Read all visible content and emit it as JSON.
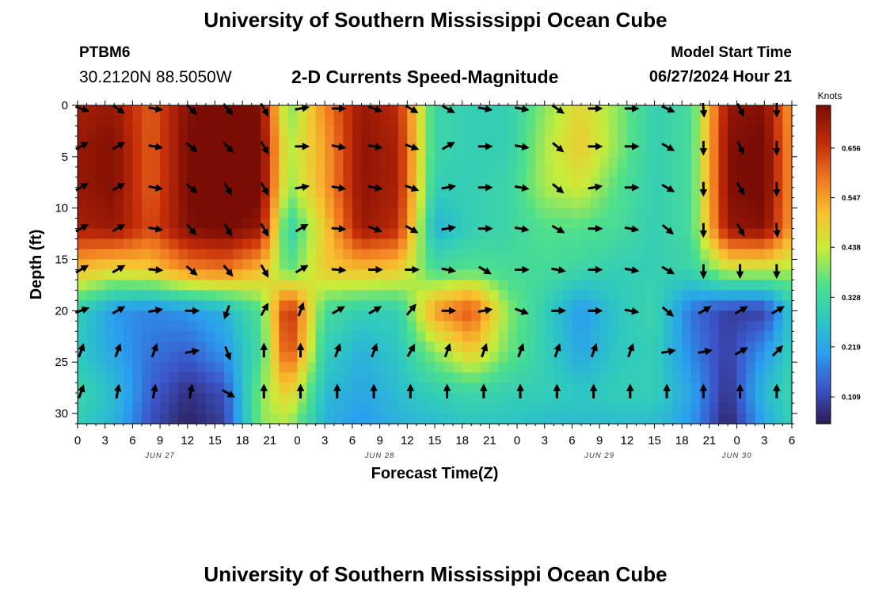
{
  "header": {
    "title": "University of Southern Mississippi Ocean Cube",
    "station": "PTBM6",
    "coordinates": "30.2120N  88.5050W",
    "subtitle": "2-D Currents Speed-Magnitude",
    "model_start_label": "Model Start Time",
    "model_start_value": "06/27/2024 Hour 21"
  },
  "footer": {
    "title": "University of Southern Mississippi Ocean Cube"
  },
  "colors": {
    "colormap": [
      "#2b1a52",
      "#3c54c8",
      "#2a9ef0",
      "#2ec9c0",
      "#4fe08a",
      "#c8ec3a",
      "#f8c030",
      "#f07820",
      "#c42c08",
      "#7a0c04"
    ]
  },
  "chart_data": {
    "type": "heatmap",
    "xlabel": "Forecast Time(Z)",
    "ylabel": "Depth (ft)",
    "colorbar_label": "Knots",
    "x_hours_range": [
      0,
      78
    ],
    "x_tick_labels": [
      "0",
      "3",
      "6",
      "9",
      "12",
      "15",
      "18",
      "21",
      "0",
      "3",
      "6",
      "9",
      "12",
      "15",
      "18",
      "21",
      "0",
      "3",
      "6",
      "9",
      "12",
      "15",
      "18",
      "21",
      "0",
      "3",
      "6"
    ],
    "date_labels": [
      {
        "label": "JUN 27",
        "hour": 9
      },
      {
        "label": "JUN 28",
        "hour": 33
      },
      {
        "label": "JUN 29",
        "hour": 57
      },
      {
        "label": "JUN 30",
        "hour": 72
      }
    ],
    "ylim": [
      0,
      31
    ],
    "y_ticks": [
      0,
      5,
      10,
      15,
      20,
      25,
      30
    ],
    "y_reversed": true,
    "colorbar_ticks": [
      0.109,
      0.219,
      0.328,
      0.438,
      0.547,
      0.656
    ],
    "color_range": [
      0.05,
      0.75
    ],
    "depths": [
      0,
      4,
      8,
      12,
      16,
      20,
      24,
      28,
      31
    ],
    "hours": [
      0,
      4,
      8,
      12,
      16,
      20,
      23,
      27,
      31,
      35,
      39,
      43,
      47,
      51,
      55,
      59,
      63,
      67,
      71,
      75,
      78
    ],
    "speed": [
      [
        0.7,
        0.72,
        0.62,
        0.74,
        0.76,
        0.74,
        0.38,
        0.58,
        0.72,
        0.68,
        0.32,
        0.3,
        0.3,
        0.4,
        0.48,
        0.4,
        0.3,
        0.34,
        0.72,
        0.74,
        0.55
      ],
      [
        0.72,
        0.74,
        0.62,
        0.75,
        0.77,
        0.76,
        0.42,
        0.55,
        0.73,
        0.7,
        0.32,
        0.3,
        0.3,
        0.42,
        0.5,
        0.4,
        0.3,
        0.34,
        0.74,
        0.76,
        0.56
      ],
      [
        0.72,
        0.74,
        0.62,
        0.75,
        0.78,
        0.76,
        0.4,
        0.55,
        0.73,
        0.7,
        0.3,
        0.3,
        0.32,
        0.42,
        0.45,
        0.36,
        0.3,
        0.34,
        0.74,
        0.76,
        0.56
      ],
      [
        0.7,
        0.72,
        0.64,
        0.74,
        0.76,
        0.72,
        0.3,
        0.5,
        0.72,
        0.68,
        0.24,
        0.3,
        0.32,
        0.36,
        0.36,
        0.34,
        0.3,
        0.34,
        0.72,
        0.74,
        0.55
      ],
      [
        0.52,
        0.48,
        0.5,
        0.58,
        0.6,
        0.52,
        0.36,
        0.5,
        0.52,
        0.5,
        0.34,
        0.36,
        0.34,
        0.34,
        0.32,
        0.3,
        0.3,
        0.32,
        0.44,
        0.44,
        0.42
      ],
      [
        0.3,
        0.2,
        0.18,
        0.2,
        0.24,
        0.36,
        0.7,
        0.34,
        0.3,
        0.3,
        0.56,
        0.64,
        0.4,
        0.3,
        0.2,
        0.28,
        0.32,
        0.16,
        0.1,
        0.1,
        0.28
      ],
      [
        0.28,
        0.22,
        0.16,
        0.14,
        0.2,
        0.34,
        0.66,
        0.3,
        0.24,
        0.28,
        0.4,
        0.5,
        0.38,
        0.3,
        0.22,
        0.28,
        0.3,
        0.18,
        0.1,
        0.2,
        0.3
      ],
      [
        0.32,
        0.26,
        0.14,
        0.08,
        0.12,
        0.4,
        0.5,
        0.26,
        0.22,
        0.26,
        0.3,
        0.32,
        0.3,
        0.3,
        0.28,
        0.3,
        0.3,
        0.22,
        0.08,
        0.26,
        0.32
      ],
      [
        0.3,
        0.24,
        0.12,
        0.06,
        0.1,
        0.4,
        0.42,
        0.24,
        0.2,
        0.24,
        0.26,
        0.28,
        0.28,
        0.26,
        0.26,
        0.26,
        0.26,
        0.2,
        0.06,
        0.22,
        0.3
      ]
    ],
    "arrow_hours": [
      0,
      4,
      8,
      12,
      16,
      20,
      24,
      28,
      32,
      36,
      40,
      44,
      48,
      52,
      56,
      60,
      64,
      68,
      72,
      76
    ],
    "arrow_depths": [
      0,
      4,
      8,
      12,
      16,
      20,
      24,
      28
    ],
    "arrow_dir_deg": [
      [
        110,
        125,
        100,
        135,
        140,
        150,
        80,
        90,
        110,
        120,
        120,
        100,
        100,
        125,
        90,
        90,
        115,
        175,
        155,
        180
      ],
      [
        60,
        60,
        100,
        130,
        135,
        150,
        90,
        100,
        100,
        110,
        60,
        90,
        100,
        130,
        90,
        90,
        120,
        180,
        155,
        180
      ],
      [
        60,
        60,
        100,
        130,
        150,
        150,
        80,
        100,
        100,
        110,
        80,
        90,
        100,
        130,
        80,
        90,
        120,
        180,
        150,
        180
      ],
      [
        60,
        60,
        100,
        140,
        150,
        150,
        60,
        95,
        110,
        120,
        80,
        90,
        100,
        120,
        90,
        100,
        130,
        180,
        150,
        175
      ],
      [
        60,
        60,
        95,
        130,
        140,
        150,
        60,
        95,
        90,
        90,
        100,
        120,
        90,
        100,
        90,
        100,
        120,
        180,
        180,
        180
      ],
      [
        70,
        60,
        80,
        90,
        200,
        30,
        20,
        60,
        60,
        40,
        90,
        80,
        110,
        90,
        90,
        100,
        130,
        60,
        60,
        60
      ],
      [
        20,
        20,
        20,
        80,
        160,
        0,
        0,
        20,
        20,
        30,
        20,
        20,
        20,
        20,
        20,
        20,
        80,
        80,
        60,
        45
      ],
      [
        20,
        10,
        10,
        10,
        120,
        0,
        0,
        0,
        0,
        0,
        0,
        0,
        0,
        0,
        0,
        0,
        0,
        0,
        0,
        0
      ]
    ]
  }
}
